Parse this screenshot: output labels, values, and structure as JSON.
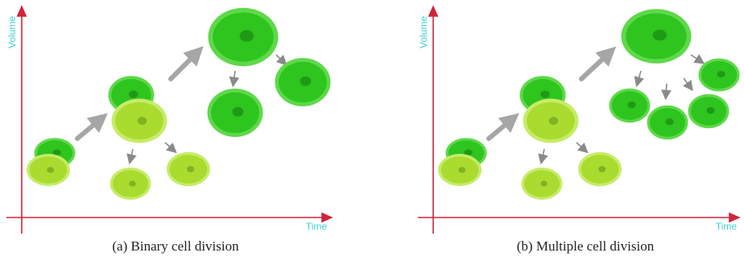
{
  "panels": [
    {
      "y_axis_label": "Volume",
      "x_axis_label": "Time",
      "caption": "(a) Binary cell division"
    },
    {
      "y_axis_label": "Volume",
      "x_axis_label": "Time",
      "caption": "(b) Multiple cell division"
    }
  ]
}
